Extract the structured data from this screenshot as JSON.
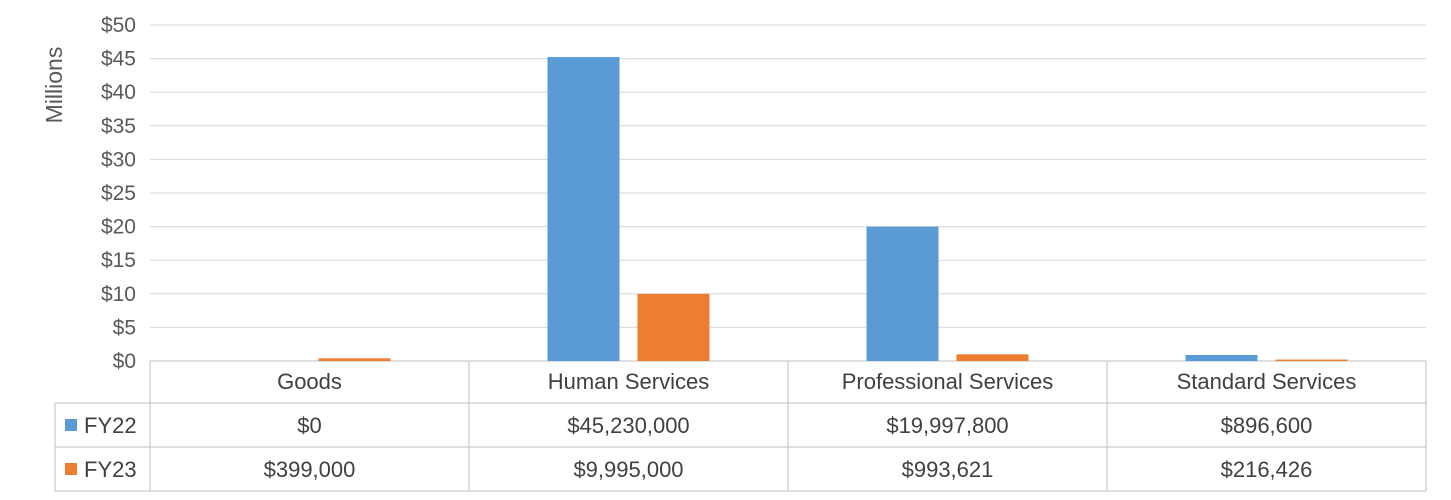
{
  "chart_data": {
    "type": "bar",
    "ylabel": "Millions",
    "ylim": [
      0,
      50
    ],
    "yticks": [
      0,
      5,
      10,
      15,
      20,
      25,
      30,
      35,
      40,
      45,
      50
    ],
    "ytick_labels": [
      "$0",
      "$5",
      "$10",
      "$15",
      "$20",
      "$25",
      "$30",
      "$35",
      "$40",
      "$45",
      "$50"
    ],
    "categories": [
      "Goods",
      "Human Services",
      "Professional Services",
      "Standard Services"
    ],
    "series": [
      {
        "name": "FY22",
        "color": "#5b9bd5",
        "values": [
          0,
          45.23,
          19.9978,
          0.8966
        ],
        "table_values": [
          "$0",
          "$45,230,000",
          "$19,997,800",
          "$896,600"
        ]
      },
      {
        "name": "FY23",
        "color": "#ed7d31",
        "values": [
          0.399,
          9.995,
          0.993621,
          0.216426
        ],
        "table_values": [
          "$399,000",
          "$9,995,000",
          "$993,621",
          "$216,426"
        ]
      }
    ],
    "grid": true,
    "legend": "data-table"
  }
}
